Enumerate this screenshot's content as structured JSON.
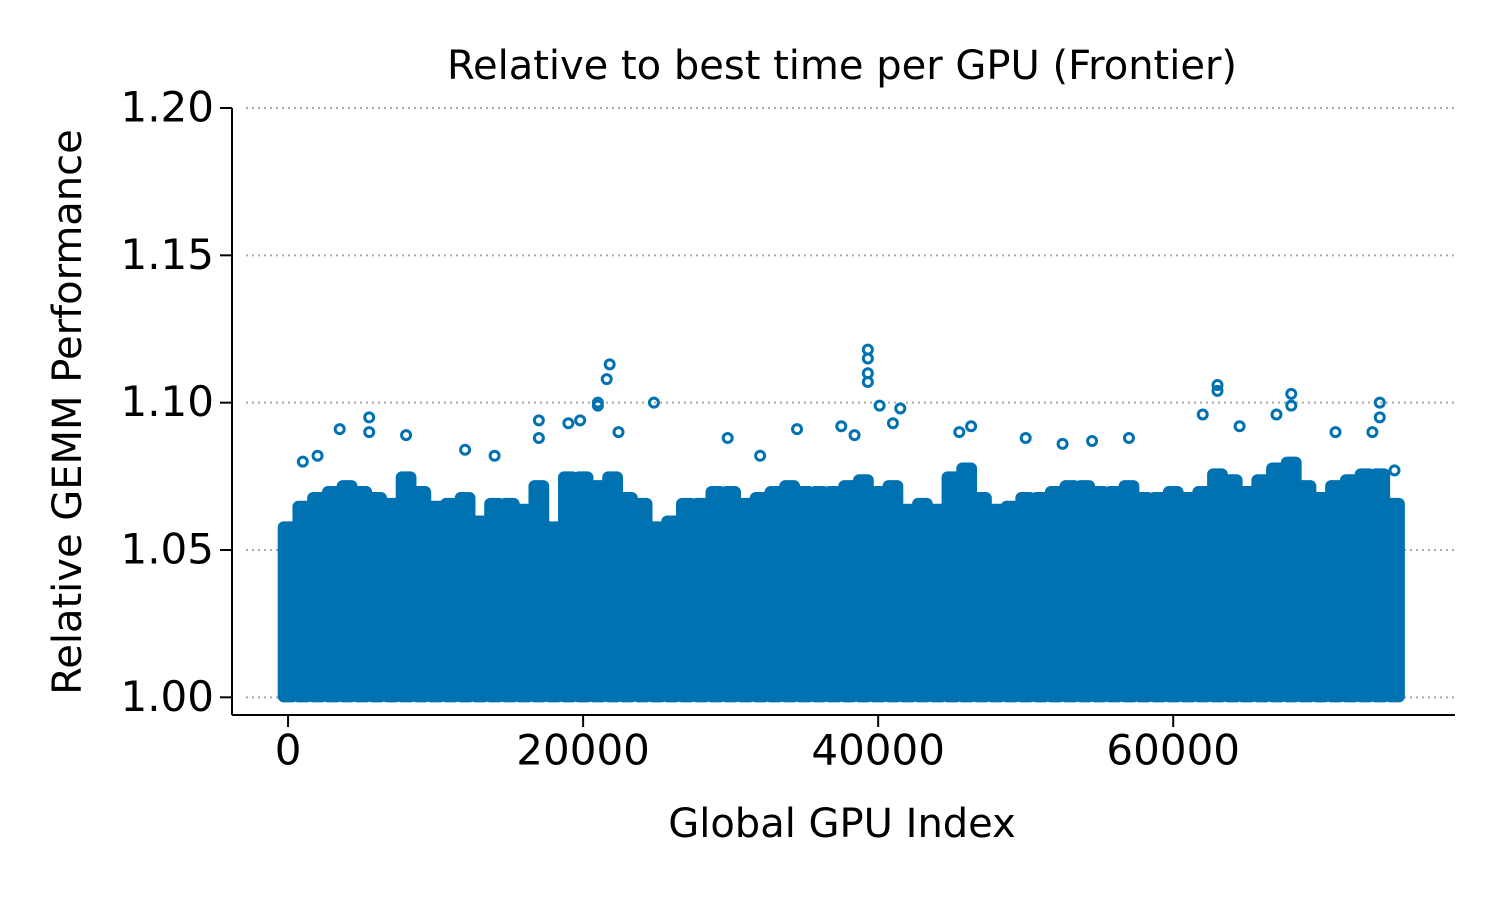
{
  "chart_data": {
    "type": "scatter",
    "title": "Relative to best time per GPU (Frontier)",
    "x_label": "Global GPU Index",
    "y_label": "Relative GEMM Performance",
    "xlim": [
      -3800,
      79100
    ],
    "ylim": [
      0.994,
      1.2
    ],
    "xticks": [
      0,
      20000,
      40000,
      60000
    ],
    "yticks": [
      {
        "value": 1,
        "label": "1.00"
      },
      1.05,
      {
        "value": 1.1,
        "label": "1.10"
      },
      1.15,
      {
        "value": 1.2,
        "label": "1.20"
      }
    ],
    "grid": true,
    "color": "#0072b2",
    "band": {
      "x": [
        0,
        1000,
        2000,
        3000,
        4000,
        5000,
        6000,
        7000,
        8000,
        9000,
        10000,
        11000,
        12000,
        13000,
        14000,
        15000,
        16000,
        17000,
        18000,
        19000,
        20000,
        21000,
        22000,
        23000,
        24000,
        25000,
        26000,
        27000,
        28000,
        29000,
        30000,
        31000,
        32000,
        33000,
        34000,
        35000,
        36000,
        37000,
        38000,
        39000,
        40000,
        41000,
        42000,
        43000,
        44000,
        45000,
        46000,
        47000,
        48000,
        49000,
        50000,
        51000,
        52000,
        53000,
        54000,
        55000,
        56000,
        57000,
        58000,
        59000,
        60000,
        61000,
        62000,
        63000,
        64000,
        65000,
        66000,
        67000,
        68000,
        69000,
        70000,
        71000,
        72000,
        73000,
        74000,
        75000
      ],
      "low": [
        1,
        1,
        1,
        1,
        1,
        1,
        1,
        1,
        1,
        1,
        1,
        1,
        1,
        1,
        1,
        1,
        1,
        1,
        1,
        1,
        1,
        1,
        1,
        1,
        1,
        1,
        1,
        1,
        1,
        1,
        1,
        1,
        1,
        1,
        1,
        1,
        1,
        1,
        1,
        1,
        1,
        1,
        1,
        1,
        1,
        1,
        1,
        1,
        1,
        1,
        1,
        1,
        1,
        1,
        1,
        1,
        1,
        1,
        1,
        1,
        1,
        1,
        1,
        1,
        1,
        1,
        1,
        1,
        1,
        1,
        1,
        1,
        1,
        1,
        1,
        1
      ],
      "high": [
        1.058,
        1.065,
        1.068,
        1.07,
        1.072,
        1.07,
        1.068,
        1.066,
        1.075,
        1.07,
        1.065,
        1.066,
        1.068,
        1.06,
        1.066,
        1.066,
        1.064,
        1.072,
        1.058,
        1.075,
        1.075,
        1.072,
        1.075,
        1.068,
        1.066,
        1.058,
        1.06,
        1.066,
        1.066,
        1.07,
        1.07,
        1.066,
        1.068,
        1.07,
        1.072,
        1.07,
        1.07,
        1.07,
        1.072,
        1.074,
        1.07,
        1.072,
        1.064,
        1.066,
        1.064,
        1.075,
        1.078,
        1.068,
        1.064,
        1.065,
        1.068,
        1.068,
        1.07,
        1.072,
        1.072,
        1.07,
        1.07,
        1.072,
        1.068,
        1.068,
        1.07,
        1.068,
        1.07,
        1.076,
        1.074,
        1.07,
        1.074,
        1.078,
        1.08,
        1.072,
        1.068,
        1.072,
        1.074,
        1.076,
        1.076,
        1.066
      ]
    },
    "outliers": {
      "x": [
        1000,
        2000,
        3500,
        5500,
        5500,
        8000,
        12000,
        14000,
        17000,
        17000,
        19000,
        19800,
        21000,
        21000,
        21600,
        21800,
        22400,
        24800,
        29800,
        32000,
        34500,
        37500,
        38400,
        39300,
        39300,
        39300,
        39300,
        40100,
        41000,
        41500,
        45500,
        46300,
        50000,
        52500,
        54500,
        57000,
        62000,
        63000,
        63000,
        64500,
        67000,
        68000,
        68000,
        71000,
        73500,
        74000,
        74000,
        75000
      ],
      "y": [
        1.08,
        1.082,
        1.091,
        1.095,
        1.09,
        1.089,
        1.084,
        1.082,
        1.094,
        1.088,
        1.093,
        1.094,
        1.1,
        1.099,
        1.108,
        1.113,
        1.09,
        1.1,
        1.088,
        1.082,
        1.091,
        1.092,
        1.089,
        1.118,
        1.115,
        1.11,
        1.107,
        1.099,
        1.093,
        1.098,
        1.09,
        1.092,
        1.088,
        1.086,
        1.087,
        1.088,
        1.096,
        1.106,
        1.104,
        1.092,
        1.096,
        1.103,
        1.099,
        1.09,
        1.09,
        1.1,
        1.095,
        1.077
      ]
    }
  }
}
